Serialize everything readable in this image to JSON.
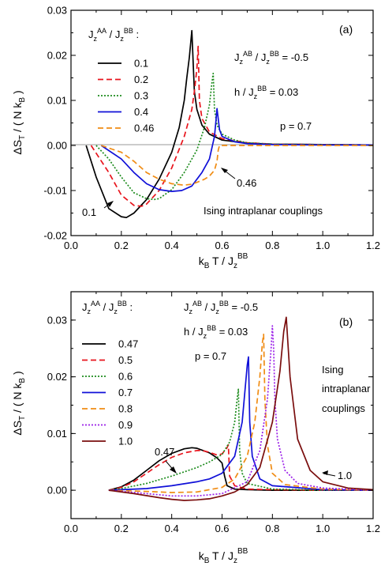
{
  "chart_data": [
    {
      "type": "line",
      "panel_label": "(a)",
      "xlabel": "k_B T / J_z^BB",
      "ylabel": "ΔS_T / ( N k_B )",
      "xlim": [
        0.0,
        1.2
      ],
      "ylim": [
        -0.02,
        0.03
      ],
      "xticks": [
        "0.0",
        "0.2",
        "0.4",
        "0.6",
        "0.8",
        "1.0",
        "1.2"
      ],
      "yticks": [
        "-0.02",
        "-0.01",
        "0.00",
        "0.01",
        "0.02",
        "0.03"
      ],
      "legend_title": "J_z^AA / J_z^BB :",
      "annotations": [
        "J_z^AB / J_z^BB = -0.5",
        "h / J_z^BB = 0.03",
        "p = 0.7",
        "Ising intraplanar couplings"
      ],
      "curve_labels": [
        "0.1",
        "0.46"
      ],
      "series": [
        {
          "name": "0.1",
          "color": "#000000",
          "dash": "solid",
          "x": [
            0.06,
            0.1,
            0.15,
            0.2,
            0.22,
            0.25,
            0.3,
            0.35,
            0.4,
            0.43,
            0.45,
            0.46,
            0.47,
            0.48,
            0.49,
            0.5,
            0.52,
            0.55,
            0.6,
            0.7,
            0.8,
            1.0,
            1.2
          ],
          "y": [
            0.0,
            -0.007,
            -0.014,
            -0.0158,
            -0.016,
            -0.015,
            -0.012,
            -0.0075,
            -0.0015,
            0.004,
            0.01,
            0.015,
            0.0195,
            0.0255,
            0.012,
            0.008,
            0.0045,
            0.0025,
            0.0012,
            0.0005,
            0.0003,
            0.0002,
            0.0001
          ]
        },
        {
          "name": "0.2",
          "color": "#e8141c",
          "dash": "7,4",
          "x": [
            0.08,
            0.15,
            0.2,
            0.25,
            0.28,
            0.3,
            0.35,
            0.4,
            0.45,
            0.48,
            0.49,
            0.5,
            0.505,
            0.51,
            0.52,
            0.55,
            0.6,
            0.7,
            0.8,
            1.0,
            1.2
          ],
          "y": [
            0.0,
            -0.006,
            -0.011,
            -0.0133,
            -0.0135,
            -0.013,
            -0.01,
            -0.005,
            0.002,
            0.008,
            0.012,
            0.017,
            0.022,
            0.01,
            0.006,
            0.003,
            0.0015,
            0.0006,
            0.0003,
            0.0002,
            0.0001
          ]
        },
        {
          "name": "0.3",
          "color": "#1e8c1e",
          "dash": "2,2",
          "x": [
            0.1,
            0.15,
            0.2,
            0.25,
            0.3,
            0.33,
            0.35,
            0.4,
            0.45,
            0.5,
            0.53,
            0.55,
            0.56,
            0.565,
            0.57,
            0.58,
            0.6,
            0.65,
            0.7,
            0.8,
            1.0,
            1.2
          ],
          "y": [
            0.0,
            -0.003,
            -0.007,
            -0.0105,
            -0.0118,
            -0.012,
            -0.0118,
            -0.0098,
            -0.006,
            -0.001,
            0.004,
            0.009,
            0.014,
            0.016,
            0.008,
            0.0045,
            0.0025,
            0.0012,
            0.0006,
            0.0003,
            0.0002,
            0.0001
          ]
        },
        {
          "name": "0.4",
          "color": "#1010d8",
          "dash": "solid",
          "x": [
            0.12,
            0.2,
            0.25,
            0.3,
            0.35,
            0.4,
            0.44,
            0.48,
            0.52,
            0.55,
            0.57,
            0.575,
            0.58,
            0.59,
            0.6,
            0.65,
            0.7,
            0.8,
            1.0,
            1.2
          ],
          "y": [
            0.0,
            -0.003,
            -0.006,
            -0.0085,
            -0.0098,
            -0.0102,
            -0.01,
            -0.009,
            -0.006,
            -0.003,
            0.002,
            0.005,
            0.0082,
            0.0035,
            0.002,
            0.0008,
            0.0004,
            0.0002,
            0.0001,
            0.0001
          ]
        },
        {
          "name": "0.46",
          "color": "#f08c14",
          "dash": "7,4",
          "x": [
            0.12,
            0.2,
            0.25,
            0.3,
            0.35,
            0.4,
            0.45,
            0.48,
            0.5,
            0.53,
            0.55,
            0.57,
            0.58,
            0.585,
            0.59,
            0.6,
            0.65,
            0.7,
            0.8,
            1.0,
            1.2
          ],
          "y": [
            0.0,
            -0.0015,
            -0.0035,
            -0.006,
            -0.0075,
            -0.0085,
            -0.0088,
            -0.0086,
            -0.0082,
            -0.0075,
            -0.0068,
            -0.0055,
            -0.0035,
            -0.001,
            0.0,
            0.0,
            0.0,
            0.0,
            0.0,
            0.0,
            0.0
          ]
        }
      ]
    },
    {
      "type": "line",
      "panel_label": "(b)",
      "xlabel": "k_B T / J_z^BB",
      "ylabel": "ΔS_T / ( N k_B )",
      "xlim": [
        0.0,
        1.2
      ],
      "ylim": [
        -0.005,
        0.035
      ],
      "xticks": [
        "0.0",
        "0.2",
        "0.4",
        "0.6",
        "0.8",
        "1.0",
        "1.2"
      ],
      "yticks": [
        "0.00",
        "0.01",
        "0.02",
        "0.03"
      ],
      "legend_title": "J_z^AA / J_z^BB :",
      "annotations": [
        "J_z^AB / J_z^BB = -0.5",
        "h / J_z^BB = 0.03",
        "p = 0.7",
        "Ising",
        "intraplanar",
        "couplings"
      ],
      "curve_labels": [
        "0.47",
        "1.0"
      ],
      "series": [
        {
          "name": "0.47",
          "color": "#000000",
          "dash": "solid",
          "x": [
            0.15,
            0.2,
            0.25,
            0.3,
            0.35,
            0.4,
            0.45,
            0.48,
            0.5,
            0.55,
            0.58,
            0.6,
            0.61,
            0.62,
            0.65,
            0.7,
            0.8,
            1.0,
            1.2
          ],
          "y": [
            0.0,
            0.0006,
            0.0018,
            0.0035,
            0.0052,
            0.0065,
            0.0073,
            0.0075,
            0.0074,
            0.0066,
            0.0057,
            0.0048,
            0.0025,
            0.0008,
            0.0002,
            0.0001,
            0.0,
            0.0,
            0.0
          ]
        },
        {
          "name": "0.5",
          "color": "#e8141c",
          "dash": "7,4",
          "x": [
            0.15,
            0.2,
            0.25,
            0.3,
            0.35,
            0.4,
            0.45,
            0.5,
            0.52,
            0.55,
            0.58,
            0.6,
            0.62,
            0.625,
            0.63,
            0.65,
            0.7,
            0.8,
            1.0,
            1.2
          ],
          "y": [
            0.0,
            0.0005,
            0.0015,
            0.003,
            0.0045,
            0.0058,
            0.0066,
            0.007,
            0.007,
            0.0067,
            0.0062,
            0.0064,
            0.0075,
            0.008,
            0.0025,
            0.0008,
            0.0002,
            0.0001,
            0.0,
            0.0
          ]
        },
        {
          "name": "0.6",
          "color": "#1e8c1e",
          "dash": "2,2",
          "x": [
            0.15,
            0.2,
            0.3,
            0.4,
            0.5,
            0.55,
            0.6,
            0.63,
            0.65,
            0.66,
            0.665,
            0.67,
            0.68,
            0.7,
            0.8,
            1.0,
            1.2
          ],
          "y": [
            0.0,
            0.0003,
            0.0012,
            0.0025,
            0.004,
            0.005,
            0.0063,
            0.0085,
            0.012,
            0.016,
            0.0178,
            0.007,
            0.003,
            0.0012,
            0.0002,
            0.0,
            0.0
          ]
        },
        {
          "name": "0.7",
          "color": "#1010d8",
          "dash": "solid",
          "x": [
            0.15,
            0.3,
            0.4,
            0.5,
            0.55,
            0.6,
            0.65,
            0.68,
            0.69,
            0.7,
            0.705,
            0.71,
            0.72,
            0.75,
            0.8,
            1.0,
            1.2
          ],
          "y": [
            0.0,
            0.0003,
            0.0008,
            0.0015,
            0.002,
            0.003,
            0.006,
            0.012,
            0.017,
            0.022,
            0.0235,
            0.012,
            0.006,
            0.002,
            0.0008,
            0.0001,
            0.0
          ]
        },
        {
          "name": "0.8",
          "color": "#f08c14",
          "dash": "7,4",
          "x": [
            0.15,
            0.3,
            0.4,
            0.5,
            0.6,
            0.65,
            0.7,
            0.73,
            0.75,
            0.76,
            0.765,
            0.77,
            0.78,
            0.8,
            0.85,
            1.0,
            1.2
          ],
          "y": [
            0.0,
            -0.0002,
            -0.0004,
            -0.0003,
            0.0005,
            0.002,
            0.006,
            0.012,
            0.02,
            0.026,
            0.0275,
            0.016,
            0.008,
            0.003,
            0.001,
            0.0002,
            0.0
          ]
        },
        {
          "name": "0.9",
          "color": "#9a1ee8",
          "dash": "2,2",
          "x": [
            0.15,
            0.3,
            0.4,
            0.5,
            0.6,
            0.7,
            0.75,
            0.78,
            0.795,
            0.8,
            0.805,
            0.81,
            0.82,
            0.85,
            0.9,
            1.0,
            1.2
          ],
          "y": [
            0.0,
            -0.0006,
            -0.001,
            -0.001,
            -0.0006,
            0.0015,
            0.007,
            0.016,
            0.025,
            0.029,
            0.025,
            0.016,
            0.009,
            0.0035,
            0.0012,
            0.0004,
            0.0
          ]
        },
        {
          "name": "1.0",
          "color": "#7a0e0e",
          "dash": "solid",
          "x": [
            0.15,
            0.25,
            0.35,
            0.4,
            0.45,
            0.5,
            0.55,
            0.6,
            0.65,
            0.7,
            0.75,
            0.8,
            0.83,
            0.845,
            0.855,
            0.87,
            0.9,
            0.95,
            1.0,
            1.1,
            1.2
          ],
          "y": [
            0.0,
            -0.0006,
            -0.0013,
            -0.0016,
            -0.0018,
            -0.0017,
            -0.0015,
            -0.001,
            -0.0003,
            0.001,
            0.004,
            0.012,
            0.021,
            0.028,
            0.0305,
            0.02,
            0.009,
            0.0035,
            0.0015,
            0.0004,
            0.0001
          ]
        }
      ]
    }
  ]
}
